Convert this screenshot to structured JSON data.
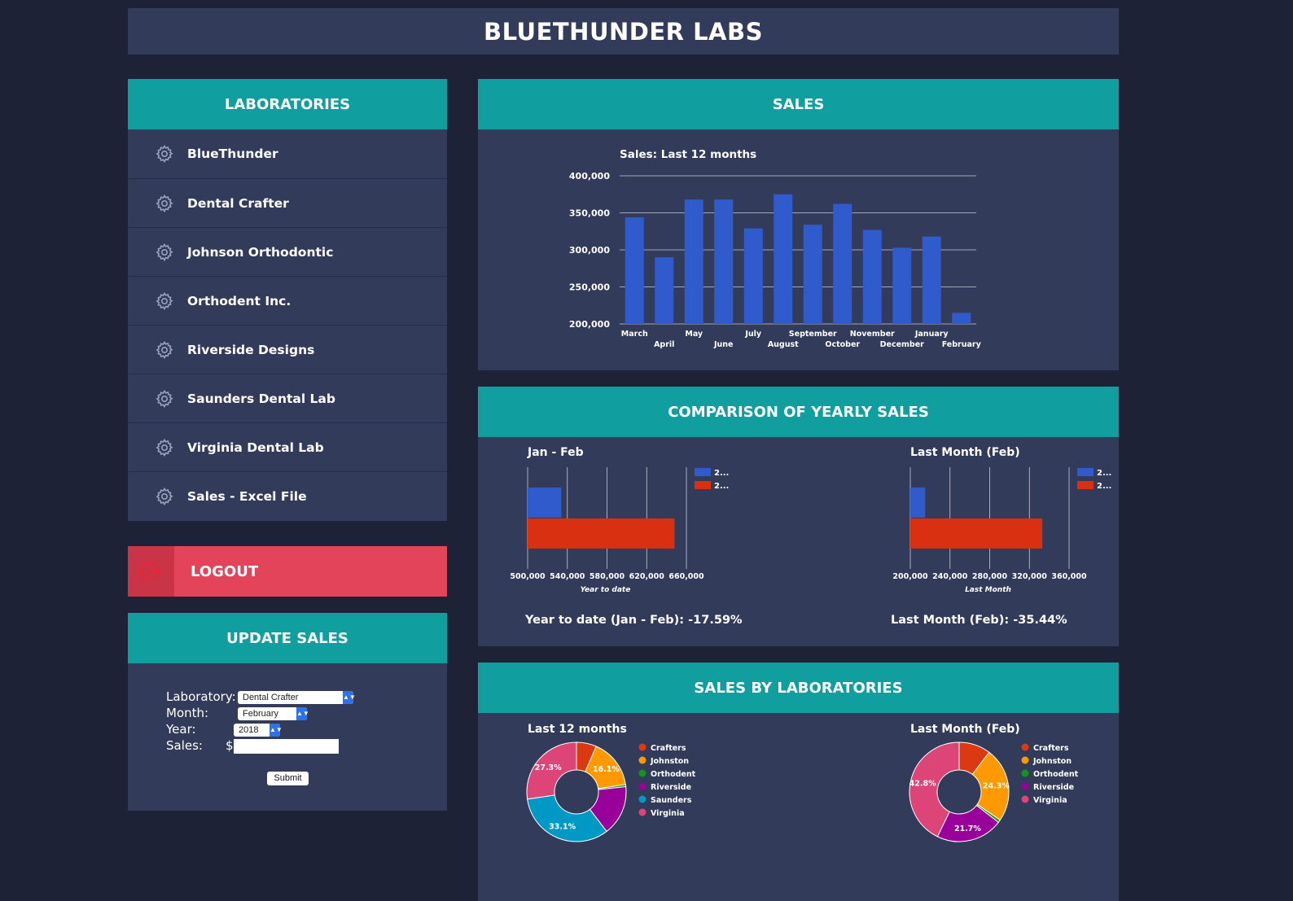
{
  "header": {
    "title": "BLUETHUNDER LABS"
  },
  "labs_panel": {
    "title": "LABORATORIES",
    "items": [
      {
        "label": "BlueThunder",
        "icon": "gear-icon"
      },
      {
        "label": "Dental Crafter",
        "icon": "gear-icon"
      },
      {
        "label": "Johnson Orthodontic",
        "icon": "gear-icon"
      },
      {
        "label": "Orthodent Inc.",
        "icon": "gear-icon"
      },
      {
        "label": "Riverside Designs",
        "icon": "gear-icon"
      },
      {
        "label": "Saunders Dental Lab",
        "icon": "gear-icon"
      },
      {
        "label": "Virginia Dental Lab",
        "icon": "gear-icon"
      },
      {
        "label": "Sales - Excel File",
        "icon": "gear-icon"
      }
    ]
  },
  "logout": {
    "label": "LOGOUT",
    "icon": "logout-icon"
  },
  "update": {
    "title": "UPDATE SALES",
    "lab_label": "Laboratory:",
    "lab_value": "Dental Crafter",
    "month_label": "Month:",
    "month_value": "February",
    "year_label": "Year:",
    "year_value": "2018",
    "sales_label": "Sales:",
    "currency": "$",
    "sales_value": "",
    "submit": "Submit"
  },
  "sales": {
    "title": "SALES"
  },
  "compare": {
    "title": "COMPARISON OF YEARLY SALES",
    "ytd_stat": "Year to date (Jan - Feb): -17.59%",
    "month_stat": "Last Month (Feb): -35.44%"
  },
  "bylab": {
    "title": "SALES BY LABORATORIES"
  },
  "colors": {
    "blue": "#2f5bcc",
    "red": "#d93012",
    "teal": "#119e9f",
    "panel": "#333b5a",
    "bg": "#1e2236",
    "logout": "#e3445a"
  },
  "chart_data": [
    {
      "type": "bar",
      "title": "Sales: Last 12 months",
      "categories": [
        "March",
        "April",
        "May",
        "June",
        "July",
        "August",
        "September",
        "October",
        "November",
        "December",
        "January",
        "February"
      ],
      "values": [
        344000,
        290000,
        368000,
        368000,
        329000,
        375000,
        334000,
        362000,
        327000,
        303000,
        318000,
        215000
      ],
      "ylim": [
        200000,
        400000
      ],
      "yticks": [
        "200,000",
        "250,000",
        "300,000",
        "350,000",
        "400,000"
      ],
      "grid": true
    },
    {
      "type": "bar",
      "orientation": "horizontal",
      "title": "Jan - Feb",
      "xlabel": "Year to date",
      "xlim": [
        500000,
        660000
      ],
      "xticks": [
        "500,000",
        "540,000",
        "580,000",
        "620,000",
        "660,000"
      ],
      "series": [
        {
          "name": "2...",
          "color": "#2f5bcc",
          "values": [
            534000
          ]
        },
        {
          "name": "2...",
          "color": "#d93012",
          "values": [
            648000
          ]
        }
      ]
    },
    {
      "type": "bar",
      "orientation": "horizontal",
      "title": "Last Month (Feb)",
      "xlabel": "Last Month",
      "xlim": [
        200000,
        360000
      ],
      "xticks": [
        "200,000",
        "240,000",
        "280,000",
        "320,000",
        "360,000"
      ],
      "series": [
        {
          "name": "2...",
          "color": "#2f5bcc",
          "values": [
            215000
          ]
        },
        {
          "name": "2...",
          "color": "#d93012",
          "values": [
            333000
          ]
        }
      ]
    },
    {
      "type": "pie",
      "title": "Last 12 months",
      "donut": true,
      "legend": "right",
      "slices": [
        {
          "name": "Crafters",
          "value": 6.5,
          "color": "#dc3912",
          "label": ""
        },
        {
          "name": "Johnston",
          "value": 16.1,
          "color": "#ff9900",
          "label": "16.1%"
        },
        {
          "name": "Orthodent",
          "value": 0.7,
          "color": "#109618",
          "label": ""
        },
        {
          "name": "Riverside",
          "value": 16.3,
          "color": "#990099",
          "label": ""
        },
        {
          "name": "Saunders",
          "value": 33.1,
          "color": "#0099c6",
          "label": "33.1%"
        },
        {
          "name": "Virginia",
          "value": 27.3,
          "color": "#dd4477",
          "label": "27.3%"
        }
      ]
    },
    {
      "type": "pie",
      "title": "Last Month (Feb)",
      "donut": true,
      "legend": "right",
      "slices": [
        {
          "name": "Crafters",
          "value": 10.3,
          "color": "#dc3912",
          "label": ""
        },
        {
          "name": "Johnston",
          "value": 24.3,
          "color": "#ff9900",
          "label": "24.3%"
        },
        {
          "name": "Orthodent",
          "value": 0.9,
          "color": "#109618",
          "label": ""
        },
        {
          "name": "Riverside",
          "value": 21.7,
          "color": "#990099",
          "label": "21.7%"
        },
        {
          "name": "Virginia",
          "value": 42.8,
          "color": "#dd4477",
          "label": "42.8%"
        }
      ]
    }
  ]
}
